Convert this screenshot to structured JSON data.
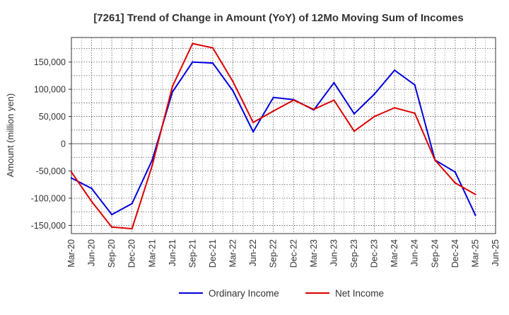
{
  "chart_data": {
    "type": "line",
    "title": "[7261]  Trend of Change in Amount (YoY) of 12Mo Moving Sum of Incomes",
    "xlabel": "",
    "ylabel": "Amount (million yen)",
    "ylim": [
      -165000,
      195000
    ],
    "yticks": [
      150000,
      100000,
      50000,
      0,
      -50000,
      -100000,
      -150000
    ],
    "ytick_labels": [
      "150,000",
      "100,000",
      "50,000",
      "0",
      "-50,000",
      "-100,000",
      "-150,000"
    ],
    "categories": [
      "Mar-20",
      "Jun-20",
      "Sep-20",
      "Dec-20",
      "Mar-21",
      "Jun-21",
      "Sep-21",
      "Dec-21",
      "Mar-22",
      "Jun-22",
      "Sep-22",
      "Dec-22",
      "Mar-23",
      "Jun-23",
      "Sep-23",
      "Dec-23",
      "Mar-24",
      "Jun-24",
      "Sep-24",
      "Dec-24",
      "Mar-25",
      "Jun-25"
    ],
    "grid": true,
    "legend_position": "bottom",
    "series": [
      {
        "name": "Ordinary Income",
        "color": "#0000dd",
        "values": [
          -63000,
          -82000,
          -130000,
          -110000,
          -30000,
          95000,
          150000,
          148000,
          97000,
          22000,
          85000,
          81000,
          62000,
          112000,
          55000,
          91000,
          135000,
          108000,
          -30000,
          -52000,
          -131000,
          null
        ]
      },
      {
        "name": "Net Income",
        "color": "#dd0000",
        "values": [
          -52000,
          -106000,
          -153000,
          -156000,
          -40000,
          105000,
          184000,
          176000,
          114000,
          39000,
          60000,
          80000,
          63000,
          80000,
          23000,
          50000,
          66000,
          56000,
          -30000,
          -72000,
          -93000,
          null
        ]
      }
    ]
  }
}
